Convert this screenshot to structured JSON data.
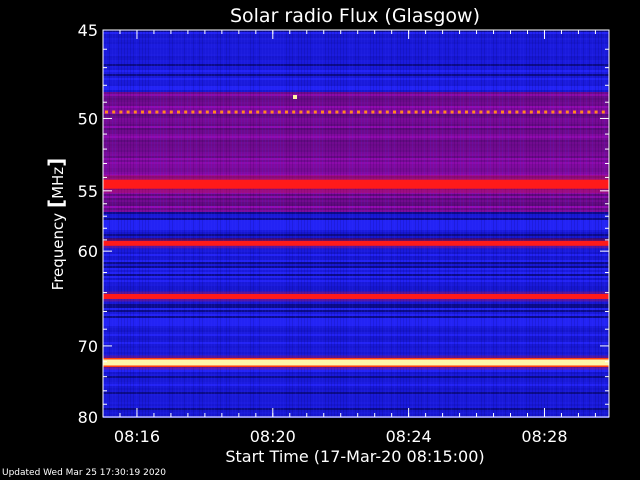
{
  "chart_data": {
    "type": "heatmap",
    "title": "Solar radio Flux (Glasgow)",
    "xlabel": "Start Time (17-Mar-20 08:15:00)",
    "ylabel_main": "Frequency ",
    "ylabel_unit": "MHz",
    "x_ticks": [
      "08:16",
      "08:20",
      "08:24",
      "08:28"
    ],
    "x_tick_minutes": [
      1,
      5,
      9,
      13
    ],
    "xlim_minutes": [
      0,
      14.9
    ],
    "y_ticks": [
      45,
      50,
      55,
      60,
      70,
      80
    ],
    "ylim_mhz": [
      45,
      80
    ],
    "y_scale": "reciprocal",
    "bands": [
      {
        "freq_mhz": 49.6,
        "kind": "dotted",
        "color": "#ff8a1c"
      },
      {
        "freq_mhz": 54.5,
        "kind": "line",
        "color": "#ff1a1a"
      },
      {
        "freq_mhz": 59.3,
        "kind": "line",
        "color": "#ff1a1a"
      },
      {
        "freq_mhz": 64.4,
        "kind": "line",
        "color": "#ff1a1a"
      },
      {
        "freq_mhz": 72.1,
        "kind": "line",
        "color": "#fff6a8"
      }
    ],
    "colors": {
      "background_blue": "#1a1ae6",
      "dark_band": "#0c0c8c",
      "hot_red": "#ff1a1a",
      "hot_yellow": "#fff6a8"
    }
  },
  "footer": "Updated Wed Mar 25 17:30:19 2020"
}
